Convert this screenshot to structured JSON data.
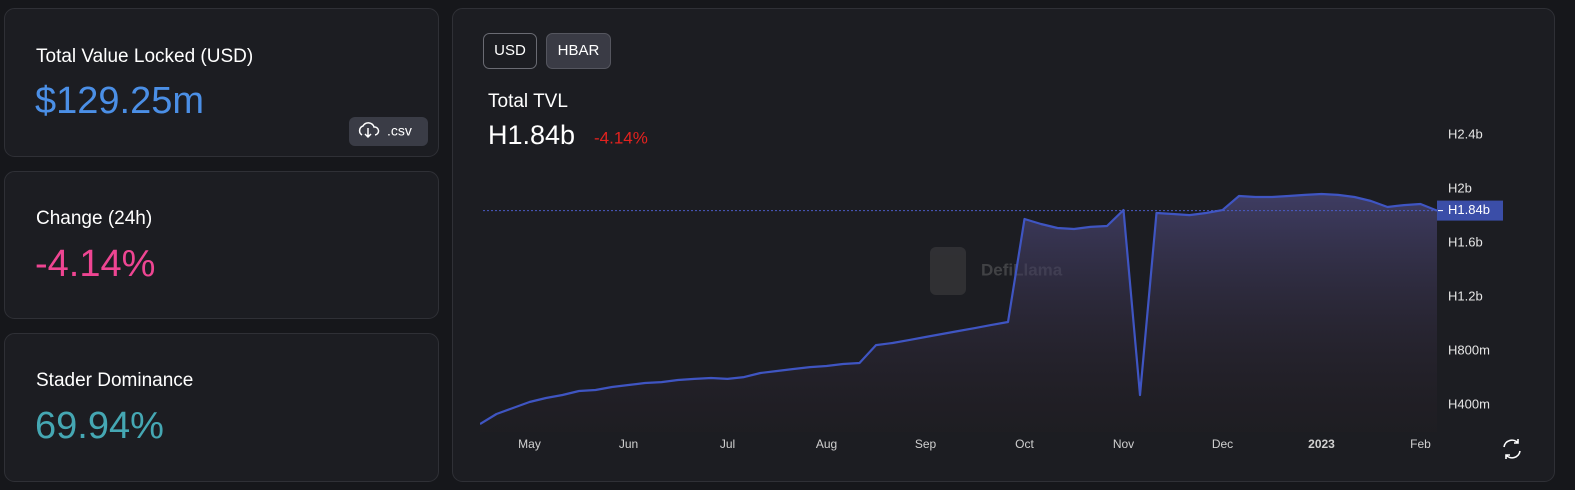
{
  "cards": [
    {
      "title": "Total Value Locked (USD)",
      "value": "$129.25m"
    },
    {
      "title": "Change (24h)",
      "value": "-4.14%"
    },
    {
      "title": "Stader Dominance",
      "value": "69.94%"
    }
  ],
  "csv_button": ".csv",
  "toggles": [
    "USD",
    "HBAR"
  ],
  "watermark": "DefiLlama",
  "chart_data": {
    "type": "area",
    "title": "Total TVL",
    "headline_value": "H1.84b",
    "headline_change": "-4.14%",
    "color": "#3f55c2",
    "categories": [
      null,
      null,
      null,
      "May",
      null,
      null,
      null,
      null,
      null,
      "Jun",
      null,
      null,
      null,
      null,
      null,
      "Jul",
      null,
      null,
      null,
      null,
      null,
      "Aug",
      null,
      null,
      null,
      null,
      null,
      "Sep",
      null,
      null,
      null,
      null,
      null,
      "Oct",
      null,
      null,
      null,
      null,
      null,
      "Nov",
      null,
      null,
      null,
      null,
      null,
      "Dec",
      null,
      null,
      null,
      null,
      null,
      "2023",
      null,
      null,
      null,
      null,
      null,
      "Feb",
      null
    ],
    "values": [
      259000000,
      333000000,
      378000000,
      422000000,
      452000000,
      474000000,
      504000000,
      511000000,
      533000000,
      548000000,
      563000000,
      570000000,
      585000000,
      593000000,
      600000000,
      593000000,
      607000000,
      637000000,
      652000000,
      667000000,
      681000000,
      689000000,
      704000000,
      711000000,
      844000000,
      859000000,
      881000000,
      904000000,
      926000000,
      948000000,
      970000000,
      993000000,
      1015000000,
      1778000000,
      1741000000,
      1711000000,
      1704000000,
      1719000000,
      1726000000,
      1844000000,
      474000000,
      1822000000,
      1815000000,
      1807000000,
      1822000000,
      1844000000,
      1948000000,
      1941000000,
      1941000000,
      1948000000,
      1956000000,
      1963000000,
      1956000000,
      1941000000,
      1911000000,
      1867000000,
      1881000000,
      1889000000,
      1840000000
    ],
    "ylim": [
      200000000,
      2600000000
    ],
    "yticks": [
      {
        "value": 400000000,
        "label": "H400m"
      },
      {
        "value": 800000000,
        "label": "H800m"
      },
      {
        "value": 1200000000,
        "label": "H1.2b"
      },
      {
        "value": 1600000000,
        "label": "H1.6b"
      },
      {
        "value": 2000000000,
        "label": "H2b"
      },
      {
        "value": 2400000000,
        "label": "H2.4b"
      }
    ],
    "current_marker": {
      "value": 1840000000,
      "label": "H1.84b"
    },
    "grid": false
  }
}
